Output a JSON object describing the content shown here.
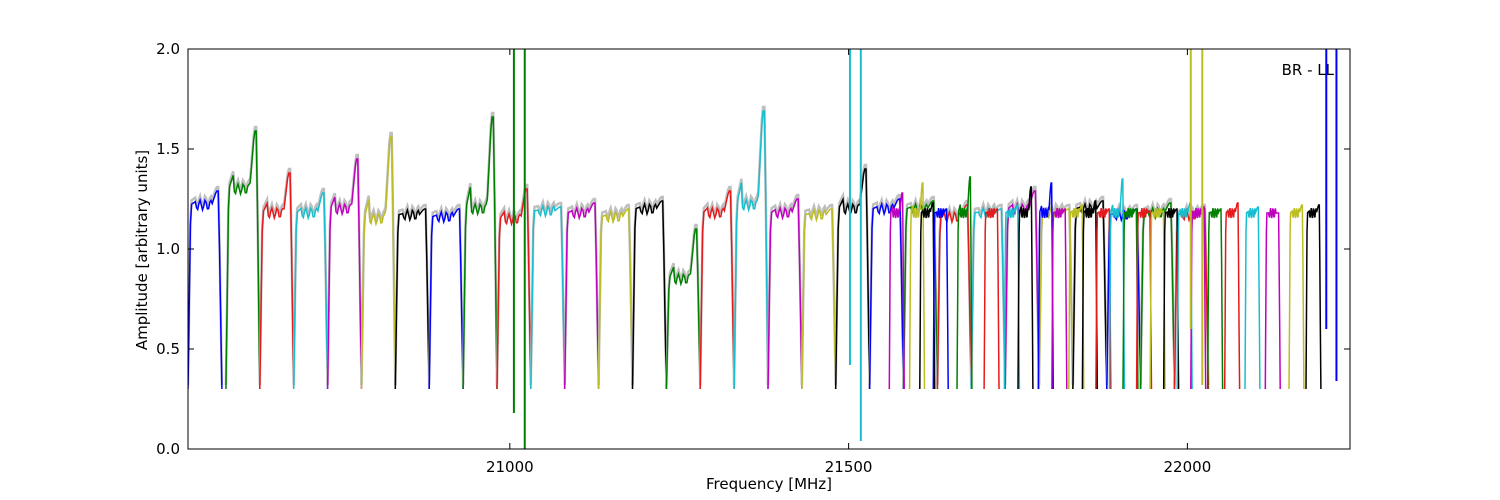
{
  "chart_data": {
    "type": "line",
    "title": "",
    "annotation": "BR - LL",
    "xlabel": "Frequency [MHz]",
    "ylabel": "Amplitude [arbitrary units]",
    "xlim": [
      20525,
      22240
    ],
    "ylim": [
      0.0,
      2.0
    ],
    "x_ticks": [
      21000,
      21500,
      22000
    ],
    "x_tick_labels": [
      "21000",
      "21500",
      "22000"
    ],
    "y_ticks": [
      0.0,
      0.5,
      1.0,
      1.5,
      2.0
    ],
    "y_tick_labels": [
      "0.0",
      "0.5",
      "1.0",
      "1.5",
      "2.0"
    ],
    "grid": false,
    "legend": "none",
    "reference_color": "#bfbfbf",
    "color_cycle": [
      "#0000ff",
      "#008000",
      "#e41a1c",
      "#17becf",
      "#bf00bf",
      "#bcbd22",
      "#000000"
    ],
    "band_width_mhz": 16,
    "bands": [
      {
        "x0": 20525,
        "color": "#0000ff",
        "peak": 1.29,
        "plateau": 1.22
      },
      {
        "x0": 20581,
        "color": "#008000",
        "peak": 1.59,
        "plateau": 1.3
      },
      {
        "x0": 20631,
        "color": "#e41a1c",
        "peak": 1.38,
        "plateau": 1.18
      },
      {
        "x0": 20681,
        "color": "#17becf",
        "peak": 1.28,
        "plateau": 1.18
      },
      {
        "x0": 20731,
        "color": "#bf00bf",
        "peak": 1.45,
        "plateau": 1.2
      },
      {
        "x0": 20781,
        "color": "#bcbd22",
        "peak": 1.56,
        "plateau": 1.15
      },
      {
        "x0": 20831,
        "color": "#000000",
        "peak": 1.2,
        "plateau": 1.17
      },
      {
        "x0": 20881,
        "color": "#0000ff",
        "peak": 1.2,
        "plateau": 1.16
      },
      {
        "x0": 20931,
        "color": "#008000",
        "peak": 1.66,
        "plateau": 1.2
      },
      {
        "x0": 20981,
        "color": "#e41a1c",
        "peak": 1.3,
        "plateau": 1.15
      },
      {
        "x0": 21031,
        "color": "#17becf",
        "peak": 1.21,
        "plateau": 1.19
      },
      {
        "x0": 21081,
        "color": "#bf00bf",
        "peak": 1.23,
        "plateau": 1.18
      },
      {
        "x0": 21131,
        "color": "#bcbd22",
        "peak": 1.2,
        "plateau": 1.16
      },
      {
        "x0": 21181,
        "color": "#000000",
        "peak": 1.24,
        "plateau": 1.2
      },
      {
        "x0": 21231,
        "color": "#008000",
        "peak": 1.1,
        "plateau": 0.85
      },
      {
        "x0": 21281,
        "color": "#e41a1c",
        "peak": 1.29,
        "plateau": 1.18
      },
      {
        "x0": 21331,
        "color": "#17becf",
        "peak": 1.69,
        "plateau": 1.22
      },
      {
        "x0": 21381,
        "color": "#bf00bf",
        "peak": 1.25,
        "plateau": 1.18
      },
      {
        "x0": 21431,
        "color": "#bcbd22",
        "peak": 1.2,
        "plateau": 1.17
      },
      {
        "x0": 21481,
        "color": "#000000",
        "peak": 1.4,
        "plateau": 1.2
      },
      {
        "x0": 21531,
        "color": "#0000ff",
        "peak": 1.25,
        "plateau": 1.2
      },
      {
        "x0": 21581,
        "color": "#008000",
        "peak": 1.24,
        "plateau": 1.2
      },
      {
        "x0": 21631,
        "color": "#e41a1c",
        "peak": 1.22,
        "plateau": 1.16
      },
      {
        "x0": 21681,
        "color": "#17becf",
        "peak": 1.2,
        "plateau": 1.18
      },
      {
        "x0": 21731,
        "color": "#bf00bf",
        "peak": 1.29,
        "plateau": 1.2
      },
      {
        "x0": 21781,
        "color": "#bcbd22",
        "peak": 1.2,
        "plateau": 1.18
      },
      {
        "x0": 21831,
        "color": "#000000",
        "peak": 1.24,
        "plateau": 1.2
      },
      {
        "x0": 21881,
        "color": "#0000ff",
        "peak": 1.2,
        "plateau": 1.17
      },
      {
        "x0": 21931,
        "color": "#008000",
        "peak": 1.23,
        "plateau": 1.18
      },
      {
        "x0": 21981,
        "color": "#e41a1c",
        "peak": 1.2,
        "plateau": 1.17
      }
    ],
    "narrow_bands": [
      {
        "x0": 21560,
        "color": "#bf00bf",
        "peak": 1.28
      },
      {
        "x0": 21590,
        "color": "#bcbd22",
        "peak": 1.33
      },
      {
        "x0": 21605,
        "color": "#000000",
        "peak": 1.23
      },
      {
        "x0": 21625,
        "color": "#0000ff",
        "peak": 1.2
      },
      {
        "x0": 21660,
        "color": "#008000",
        "peak": 1.36
      },
      {
        "x0": 21700,
        "color": "#e41a1c",
        "peak": 1.2
      },
      {
        "x0": 21730,
        "color": "#17becf",
        "peak": 1.22
      },
      {
        "x0": 21750,
        "color": "#000000",
        "peak": 1.31
      },
      {
        "x0": 21780,
        "color": "#0000ff",
        "peak": 1.33
      },
      {
        "x0": 21800,
        "color": "#bf00bf",
        "peak": 1.2
      },
      {
        "x0": 21825,
        "color": "#bcbd22",
        "peak": 1.22
      },
      {
        "x0": 21845,
        "color": "#000000",
        "peak": 1.24
      },
      {
        "x0": 21865,
        "color": "#e41a1c",
        "peak": 1.2
      },
      {
        "x0": 21885,
        "color": "#17becf",
        "peak": 1.35
      },
      {
        "x0": 21905,
        "color": "#008000",
        "peak": 1.2
      },
      {
        "x0": 21925,
        "color": "#e41a1c",
        "peak": 1.19
      },
      {
        "x0": 21945,
        "color": "#bcbd22",
        "peak": 1.19
      },
      {
        "x0": 21965,
        "color": "#000000",
        "peak": 1.2
      },
      {
        "x0": 21985,
        "color": "#17becf",
        "peak": 1.23
      },
      {
        "x0": 22005,
        "color": "#bf00bf",
        "peak": 1.21
      },
      {
        "x0": 22030,
        "color": "#008000",
        "peak": 1.2
      },
      {
        "x0": 22055,
        "color": "#e41a1c",
        "peak": 1.23
      },
      {
        "x0": 22085,
        "color": "#17becf",
        "peak": 1.21
      },
      {
        "x0": 22115,
        "color": "#bf00bf",
        "peak": 1.18
      },
      {
        "x0": 22150,
        "color": "#bcbd22",
        "peak": 1.22
      },
      {
        "x0": 22175,
        "color": "#000000",
        "peak": 1.22
      }
    ],
    "rfi_spikes": [
      {
        "x": 21006,
        "color": "#008000",
        "y_min": 0.18,
        "y_max": 2.0
      },
      {
        "x": 21022,
        "color": "#008000",
        "y_min": 0.0,
        "y_max": 2.0
      },
      {
        "x": 21502,
        "color": "#17becf",
        "y_min": 0.42,
        "y_max": 2.0
      },
      {
        "x": 21518,
        "color": "#17becf",
        "y_min": 0.04,
        "y_max": 2.0
      },
      {
        "x": 22005,
        "color": "#bcbd22",
        "y_min": 0.6,
        "y_max": 2.0
      },
      {
        "x": 22022,
        "color": "#bcbd22",
        "y_min": 0.32,
        "y_max": 2.0
      },
      {
        "x": 22205,
        "color": "#0000ff",
        "y_min": 0.6,
        "y_max": 2.0
      },
      {
        "x": 22220,
        "color": "#0000ff",
        "y_min": 0.34,
        "y_max": 2.0
      }
    ],
    "dip_level": 0.3
  }
}
